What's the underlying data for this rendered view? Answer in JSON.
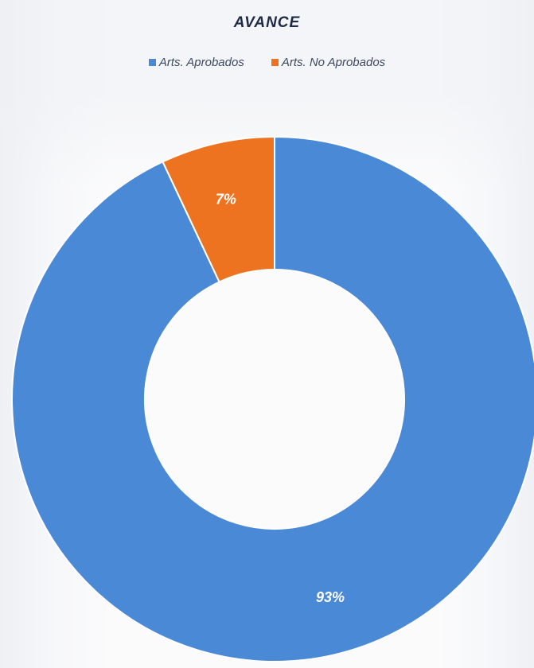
{
  "chart_data": {
    "type": "pie",
    "title": "AVANCE",
    "legend_position": "top",
    "categories": [
      "Arts. Aprobados",
      "Arts. No Aprobados"
    ],
    "values": [
      93,
      7
    ],
    "labels": [
      "93%",
      "7%"
    ],
    "colors": [
      "#4a89d6",
      "#ee7320"
    ],
    "donut": true
  }
}
